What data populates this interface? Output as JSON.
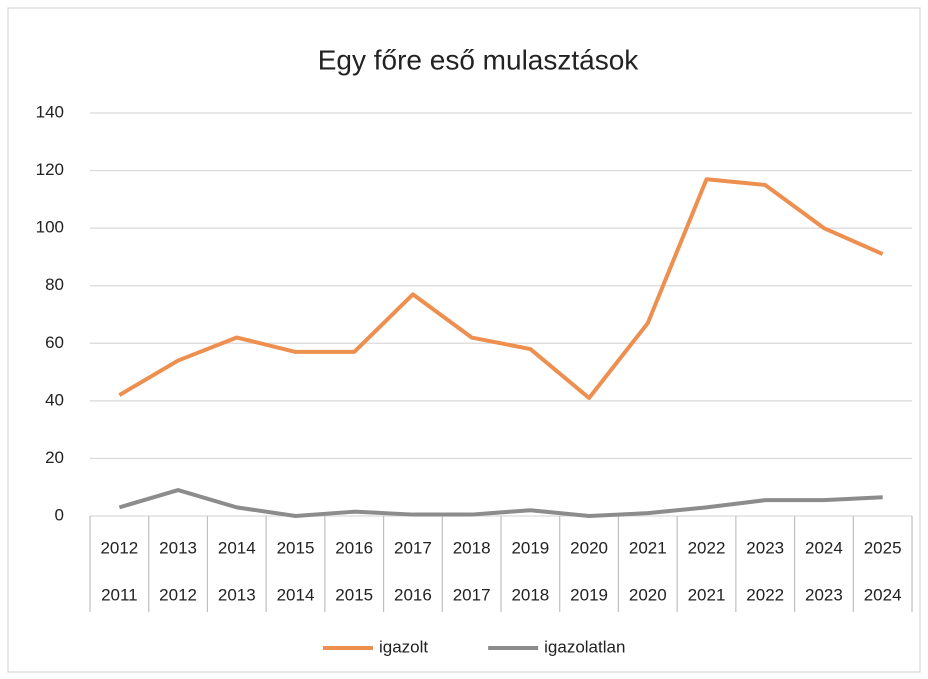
{
  "chart_data": {
    "type": "line",
    "title": "Egy főre eső mulasztások",
    "categories": [
      [
        "2012",
        "2011"
      ],
      [
        "2013",
        "2012"
      ],
      [
        "2014",
        "2013"
      ],
      [
        "2015",
        "2014"
      ],
      [
        "2016",
        "2015"
      ],
      [
        "2017",
        "2016"
      ],
      [
        "2018",
        "2017"
      ],
      [
        "2019",
        "2018"
      ],
      [
        "2020",
        "2019"
      ],
      [
        "2021",
        "2020"
      ],
      [
        "2022",
        "2021"
      ],
      [
        "2023",
        "2022"
      ],
      [
        "2024",
        "2023"
      ],
      [
        "2025",
        "2024"
      ]
    ],
    "series": [
      {
        "name": "igazolt",
        "color": "#ed8f4f",
        "values": [
          42,
          54,
          62,
          57,
          57,
          77,
          62,
          58,
          41,
          67,
          117,
          115,
          100,
          91
        ]
      },
      {
        "name": "igazolatlan",
        "color": "#8c8c8c",
        "values": [
          3,
          9,
          3,
          0,
          1.5,
          0.5,
          0.5,
          2,
          0,
          1,
          3,
          5.5,
          5.5,
          6.5
        ]
      }
    ],
    "ylim": [
      0,
      140
    ],
    "yticks": [
      0,
      20,
      40,
      60,
      80,
      100,
      120,
      140
    ],
    "grid": true,
    "legend": "bottom"
  }
}
